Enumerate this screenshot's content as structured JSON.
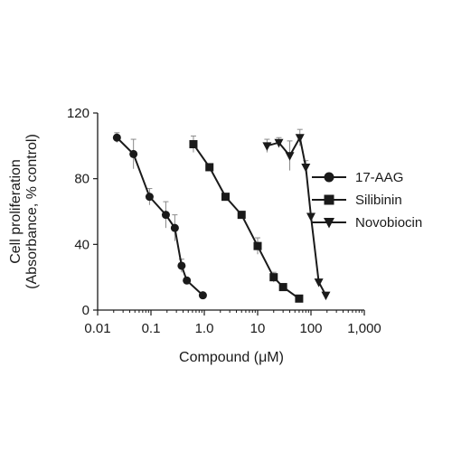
{
  "chart_data": {
    "type": "line",
    "xlabel": "Compound (μM)",
    "ylabel_lines": [
      "Cell proliferation",
      "(Absorbance, % control)"
    ],
    "x_scale": "log",
    "xlim": [
      0.01,
      1000
    ],
    "ylim": [
      0,
      120
    ],
    "x_ticks": [
      0.01,
      0.1,
      1,
      10,
      100,
      1000
    ],
    "x_tick_labels": [
      "0.01",
      "0.1",
      "1.0",
      "10",
      "100",
      "1,000"
    ],
    "y_ticks": [
      0,
      40,
      80,
      120
    ],
    "y_tick_labels": [
      "0",
      "40",
      "80",
      "120"
    ],
    "grid": false,
    "legend_position": "right",
    "series": [
      {
        "name": "17-AAG",
        "marker": "circle",
        "x": [
          0.023,
          0.047,
          0.094,
          0.19,
          0.28,
          0.375,
          0.47,
          0.94
        ],
        "y": [
          105,
          95,
          69,
          58,
          50,
          27,
          18,
          9
        ],
        "err": [
          3,
          9,
          5,
          8,
          8,
          4,
          0,
          0
        ]
      },
      {
        "name": "Silibinin",
        "marker": "square",
        "x": [
          0.625,
          1.25,
          2.5,
          5,
          10,
          20,
          30,
          60
        ],
        "y": [
          101,
          87,
          69,
          58,
          39,
          20,
          14,
          7
        ],
        "err": [
          5,
          0,
          0,
          0,
          5,
          3,
          0,
          0
        ]
      },
      {
        "name": "Novobiocin",
        "marker": "triangle-down",
        "x": [
          15,
          25,
          40,
          62,
          80,
          100,
          140,
          190
        ],
        "y": [
          100,
          102,
          94,
          105,
          87,
          57,
          17,
          9
        ],
        "err": [
          4,
          3,
          9,
          5,
          4,
          0,
          0,
          0
        ]
      }
    ]
  }
}
